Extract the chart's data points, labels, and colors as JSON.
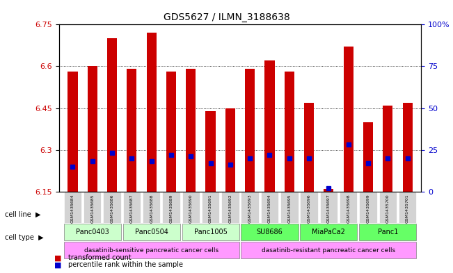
{
  "title": "GDS5627 / ILMN_3188638",
  "samples": [
    "GSM1435684",
    "GSM1435685",
    "GSM1435686",
    "GSM1435687",
    "GSM1435688",
    "GSM1435689",
    "GSM1435690",
    "GSM1435691",
    "GSM1435692",
    "GSM1435693",
    "GSM1435694",
    "GSM1435695",
    "GSM1435696",
    "GSM1435697",
    "GSM1435698",
    "GSM1435699",
    "GSM1435700",
    "GSM1435701"
  ],
  "transformed_count": [
    6.58,
    6.6,
    6.7,
    6.59,
    6.72,
    6.58,
    6.59,
    6.44,
    6.45,
    6.59,
    6.62,
    6.58,
    6.47,
    6.16,
    6.67,
    6.4,
    6.46,
    6.47
  ],
  "percentile_rank": [
    15,
    18,
    23,
    20,
    18,
    22,
    21,
    17,
    16,
    20,
    22,
    20,
    20,
    2,
    28,
    17,
    20,
    20
  ],
  "ylim_left": [
    6.15,
    6.75
  ],
  "ylim_right": [
    0,
    100
  ],
  "yticks_left": [
    6.15,
    6.3,
    6.45,
    6.6,
    6.75
  ],
  "yticks_right": [
    0,
    25,
    50,
    75,
    100
  ],
  "ytick_labels_right": [
    "0",
    "25",
    "50",
    "75",
    "100%"
  ],
  "cell_lines": [
    {
      "label": "Panc0403",
      "start": 0,
      "end": 2,
      "color": "#ccffcc"
    },
    {
      "label": "Panc0504",
      "start": 3,
      "end": 5,
      "color": "#ccffcc"
    },
    {
      "label": "Panc1005",
      "start": 6,
      "end": 8,
      "color": "#ccffcc"
    },
    {
      "label": "SU8686",
      "start": 9,
      "end": 11,
      "color": "#66ff66"
    },
    {
      "label": "MiaPaCa2",
      "start": 12,
      "end": 14,
      "color": "#66ff66"
    },
    {
      "label": "Panc1",
      "start": 15,
      "end": 17,
      "color": "#66ff66"
    }
  ],
  "cell_types": [
    {
      "label": "dasatinib-sensitive pancreatic cancer cells",
      "start": 0,
      "end": 8,
      "color": "#ff99ff"
    },
    {
      "label": "dasatinib-resistant pancreatic cancer cells",
      "start": 9,
      "end": 17,
      "color": "#ff99ff"
    }
  ],
  "bar_color": "#cc0000",
  "percentile_color": "#0000cc",
  "baseline": 6.15,
  "right_axis_color": "#0000cc",
  "left_axis_color": "#cc0000",
  "grid_color": "black",
  "sample_box_color": "#d3d3d3",
  "legend_items": [
    {
      "color": "#cc0000",
      "label": "transformed count"
    },
    {
      "color": "#0000cc",
      "label": "percentile rank within the sample"
    }
  ]
}
